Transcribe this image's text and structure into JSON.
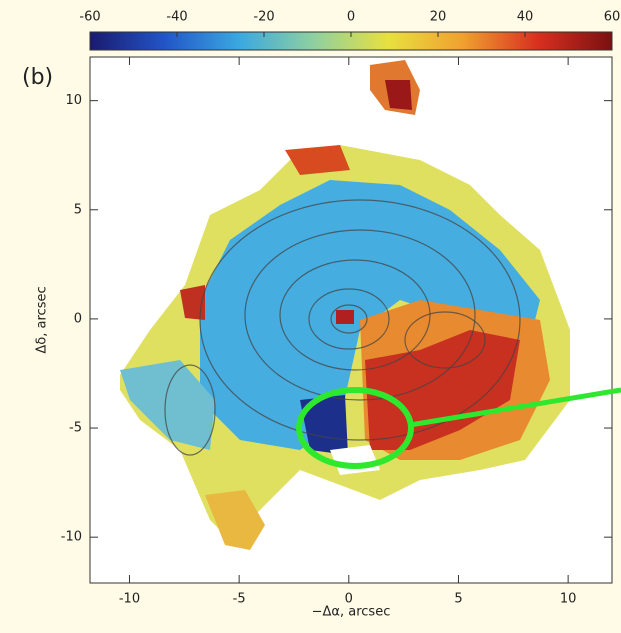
{
  "chart_data": {
    "type": "heatmap",
    "panel_label": "(b)",
    "xlabel": "−Δα, arcsec",
    "ylabel": "Δδ, arcsec",
    "xlim": [
      -11.8,
      12
    ],
    "xticks": [
      -10,
      -5,
      0,
      5,
      10
    ],
    "ylim": [
      -12.1,
      12
    ],
    "yticks": [
      -10,
      -5,
      0,
      5,
      10
    ],
    "clim": [
      -60,
      60
    ],
    "cticks": [
      -60,
      -40,
      -20,
      0,
      20,
      40,
      60
    ],
    "colormap": [
      "#1a1a6e",
      "#2255c8",
      "#3aa8e0",
      "#8fd0a0",
      "#e8e040",
      "#f0a030",
      "#d83020",
      "#7a1010"
    ]
  }
}
